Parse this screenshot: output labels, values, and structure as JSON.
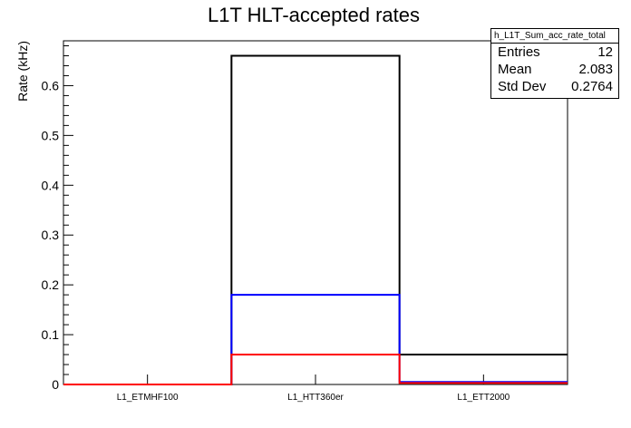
{
  "chart_data": {
    "type": "bar",
    "title": "L1T HLT-accepted rates",
    "ylabel": "Rate (kHz)",
    "xlabel": "",
    "categories": [
      "L1_ETMHF100",
      "L1_HTT360er",
      "L1_ETT2000"
    ],
    "ylim": [
      0,
      0.69
    ],
    "yticks": [
      "0",
      "0.1",
      "0.2",
      "0.3",
      "0.4",
      "0.5",
      "0.6"
    ],
    "series": [
      {
        "color": "#000000",
        "values": [
          0,
          0.66,
          0.06
        ]
      },
      {
        "color": "#0000ff",
        "values": [
          0,
          0.18,
          0.005
        ]
      },
      {
        "color": "#ff0000",
        "values": [
          0,
          0.06,
          0.003
        ]
      }
    ],
    "grid": false,
    "stats_box": {
      "name": "h_L1T_Sum_acc_rate_total",
      "rows": [
        {
          "label": "Entries",
          "value": "12"
        },
        {
          "label": "Mean",
          "value": "2.083"
        },
        {
          "label": "Std Dev",
          "value": "0.2764"
        }
      ]
    }
  }
}
